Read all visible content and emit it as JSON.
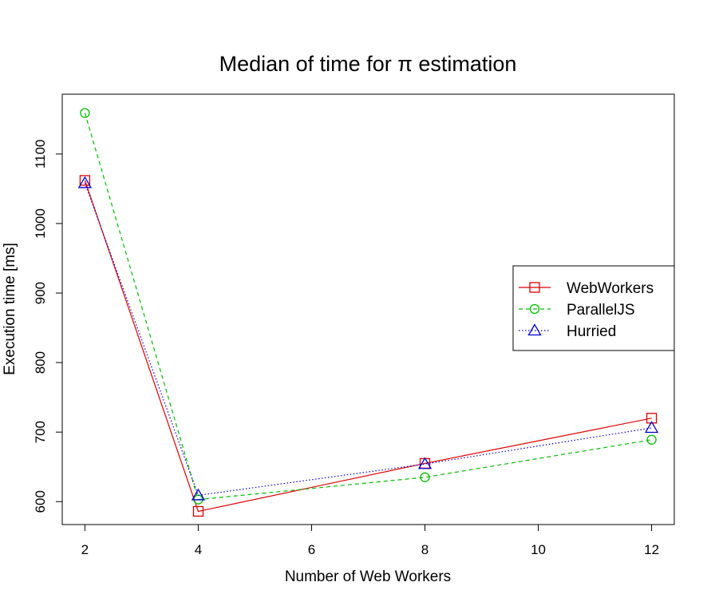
{
  "chart_data": {
    "type": "line",
    "title": "Median of time for π estimation",
    "xlabel": "Number of Web Workers",
    "ylabel": "Execution time [ms]",
    "x": [
      2,
      4,
      8,
      12
    ],
    "xlim": [
      1.6,
      12.4
    ],
    "ylim": [
      567,
      1186
    ],
    "xticks": [
      2,
      4,
      6,
      8,
      10,
      12
    ],
    "yticks": [
      600,
      700,
      800,
      900,
      1000,
      1100
    ],
    "grid": false,
    "legend_position": "right",
    "series": [
      {
        "name": "WebWorkers",
        "values": [
          1062,
          586,
          655,
          720
        ],
        "color": "#dd0000",
        "marker": "square",
        "line_style": "solid"
      },
      {
        "name": "ParallelJS",
        "values": [
          1159,
          603,
          635,
          689
        ],
        "color": "#00bb00",
        "marker": "circle",
        "line_style": "dashed"
      },
      {
        "name": "Hurried",
        "values": [
          1058,
          609,
          654,
          706
        ],
        "color": "#0000cc",
        "marker": "triangle",
        "line_style": "dotted"
      }
    ]
  }
}
